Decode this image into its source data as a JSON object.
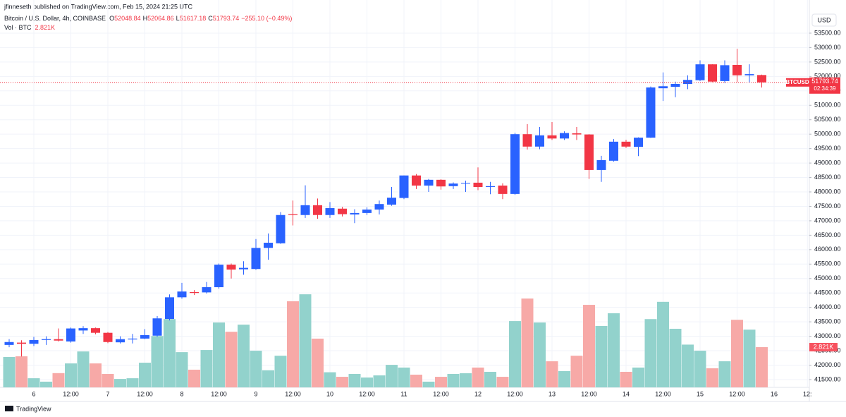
{
  "header": {
    "published": "jfinneseth published on TradingView.com, Feb 15, 2024 21:25 UTC"
  },
  "footer": {
    "brand": "TradingView"
  },
  "chart_data": {
    "type": "candlestick",
    "symbol": "Bitcoin / U.S. Dollar, 4h, COINBASE",
    "ohlc_labels": [
      "O",
      "H",
      "L",
      "C"
    ],
    "change": "−255.10 (−0.49%)",
    "currency": "USD",
    "price_tag": "BTCUSD",
    "countdown": "02:34:39",
    "up_color": "#2962ff",
    "down_color": "#f23645",
    "categories": [
      null,
      null,
      "6",
      null,
      null,
      "12:00",
      null,
      null,
      "7",
      null,
      null,
      "12:00",
      null,
      null,
      "8",
      null,
      null,
      "12:00",
      null,
      null,
      "9",
      null,
      null,
      "12:00",
      null,
      null,
      "10",
      null,
      null,
      "12:00",
      null,
      null,
      "11",
      null,
      null,
      "12:00",
      null,
      null,
      "12",
      null,
      null,
      "12:00",
      null,
      null,
      "13",
      null,
      null,
      "12:00",
      null,
      null,
      "14",
      null,
      null,
      "12:00",
      null,
      null,
      "15",
      null,
      null,
      "12:00",
      null,
      null
    ],
    "future_categories": [
      "16",
      "12:"
    ],
    "open": [
      42700,
      42780,
      42740,
      42870,
      42900,
      42820,
      43200,
      43280,
      43120,
      42790,
      42890,
      42920,
      43020,
      43600,
      44350,
      44530,
      44520,
      44700,
      45480,
      45320,
      45330,
      46060,
      46220,
      47230,
      47200,
      47540,
      47200,
      47420,
      47220,
      47270,
      47390,
      47560,
      47790,
      48570,
      48220,
      48420,
      48200,
      48290,
      48320,
      48170,
      48220,
      47930,
      50000,
      49570,
      49960,
      49850,
      50030,
      49990,
      48760,
      49080,
      49740,
      49560,
      49880,
      51590,
      51640,
      51740,
      51870,
      52420,
      51840,
      52400,
      52040,
      52048.84
    ],
    "high": [
      42900,
      42860,
      42980,
      43000,
      43270,
      43300,
      43350,
      43300,
      43150,
      43000,
      43080,
      43250,
      43700,
      44450,
      44850,
      44600,
      44880,
      45520,
      45520,
      45600,
      46370,
      46560,
      47300,
      47700,
      48230,
      47770,
      47650,
      47480,
      47400,
      47470,
      47700,
      48170,
      48570,
      48620,
      48450,
      48440,
      48330,
      48390,
      48850,
      48350,
      48300,
      50050,
      50350,
      50250,
      50420,
      50100,
      50250,
      50000,
      49250,
      49830,
      49810,
      49890,
      51650,
      52140,
      51820,
      52040,
      52560,
      52420,
      52560,
      52960,
      52420,
      52064.86
    ],
    "low": [
      42620,
      42300,
      42660,
      42700,
      42820,
      42780,
      43080,
      43070,
      42760,
      42750,
      42750,
      42900,
      42980,
      43550,
      44300,
      44430,
      44480,
      44650,
      45000,
      45130,
      45300,
      45650,
      46200,
      46840,
      47100,
      47070,
      47100,
      47150,
      46920,
      47200,
      47220,
      47520,
      47750,
      48100,
      48000,
      48080,
      48100,
      48000,
      48060,
      47920,
      47750,
      47900,
      49470,
      49480,
      49800,
      49800,
      49800,
      48450,
      48350,
      49050,
      49520,
      49240,
      49870,
      51150,
      51280,
      51560,
      51840,
      51800,
      51780,
      51800,
      51790,
      51617.18
    ],
    "close": [
      42800,
      42740,
      42870,
      42900,
      42850,
      43270,
      43280,
      43120,
      42800,
      42900,
      42920,
      43040,
      43620,
      44350,
      44550,
      44500,
      44700,
      45480,
      45310,
      45370,
      46060,
      46240,
      47200,
      47200,
      47540,
      47200,
      47440,
      47230,
      47270,
      47390,
      47580,
      47800,
      48570,
      48220,
      48420,
      48190,
      48290,
      48310,
      48170,
      48200,
      47930,
      50000,
      49570,
      49960,
      49850,
      50040,
      49990,
      48760,
      49100,
      49740,
      49570,
      49880,
      51620,
      51660,
      51740,
      51880,
      52420,
      51820,
      52390,
      52040,
      52080,
      51793.74
    ],
    "ylim": [
      41230,
      53915
    ],
    "yticks": [
      {
        "value": 41500,
        "label": "41500.00"
      },
      {
        "value": 42000,
        "label": "42000.00"
      },
      {
        "value": 42500,
        "label": "42500.00"
      },
      {
        "value": 43000,
        "label": "43000.00"
      },
      {
        "value": 43500,
        "label": "43500.00"
      },
      {
        "value": 44000,
        "label": "44000.00"
      },
      {
        "value": 44500,
        "label": "44500.00"
      },
      {
        "value": 45000,
        "label": "45000.00"
      },
      {
        "value": 45500,
        "label": "45500.00"
      },
      {
        "value": 46000,
        "label": "46000.00"
      },
      {
        "value": 46500,
        "label": "46500.00"
      },
      {
        "value": 47000,
        "label": "47000.00"
      },
      {
        "value": 47500,
        "label": "47500.00"
      },
      {
        "value": 48000,
        "label": "48000.00"
      },
      {
        "value": 48500,
        "label": "48500.00"
      },
      {
        "value": 49000,
        "label": "49000.00"
      },
      {
        "value": 49500,
        "label": "49500.00"
      },
      {
        "value": 50000,
        "label": "50000.00"
      },
      {
        "value": 50500,
        "label": "50500.00"
      },
      {
        "value": 51000,
        "label": "51000.00"
      },
      {
        "value": 51500,
        "label": "51500.00"
      },
      {
        "value": 52000,
        "label": "52000.00"
      },
      {
        "value": 52500,
        "label": "52500.00"
      },
      {
        "value": 53000,
        "label": "53000.00"
      },
      {
        "value": 53500,
        "label": "53500.00"
      }
    ],
    "grid": true,
    "volume": {
      "name": "Vol · BTC",
      "up_color": "#92d2cc",
      "down_color": "#f7a9a7",
      "ylim": [
        0,
        10000
      ],
      "last_value_label": "2.821K",
      "values": [
        2130,
        2180,
        640,
        400,
        1000,
        1680,
        2520,
        1680,
        940,
        590,
        640,
        1730,
        3600,
        4790,
        2470,
        1240,
        2620,
        4550,
        3900,
        4400,
        2570,
        1200,
        2220,
        6040,
        6530,
        3420,
        1060,
        740,
        940,
        690,
        840,
        1580,
        1390,
        890,
        400,
        740,
        940,
        990,
        1390,
        1090,
        740,
        4650,
        6230,
        4550,
        1830,
        1140,
        2220,
        5790,
        4310,
        5200,
        1090,
        1390,
        4790,
        6000,
        4110,
        3000,
        2570,
        1340,
        1830,
        4740,
        4050,
        2821
      ]
    }
  }
}
